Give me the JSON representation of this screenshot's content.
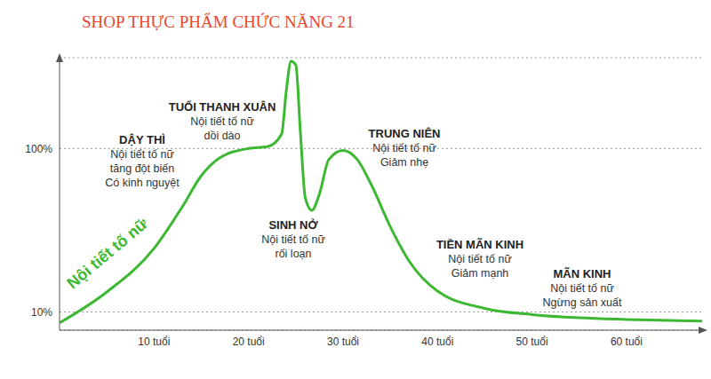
{
  "chart_data": {
    "type": "line",
    "title": "SHOP THỰC PHẨM CHỨC NĂNG 21",
    "x": [
      0,
      5,
      10,
      13,
      15,
      17,
      20,
      22,
      23.5,
      24,
      24.5,
      25,
      25.5,
      26,
      26.7,
      27.5,
      28.5,
      30,
      31.5,
      33,
      35,
      37,
      40,
      45,
      50,
      55,
      60,
      68
    ],
    "series": [
      {
        "name": "Nội tiết tố nữ",
        "color": "#3cb832",
        "values": [
          4,
          21,
          45,
          68,
          85,
          95,
          100,
          101,
          108,
          132,
          148,
          146,
          108,
          73,
          66,
          75,
          94,
          99,
          94,
          80,
          57,
          38,
          21.5,
          12,
          8.6,
          6.8,
          5.9,
          5
        ]
      }
    ],
    "xlim": [
      0,
      68
    ],
    "xticks": [
      {
        "value": 10,
        "label": "10 tuổi"
      },
      {
        "value": 20,
        "label": "20 tuổi"
      },
      {
        "value": 30,
        "label": "30 tuổi"
      },
      {
        "value": 40,
        "label": "40 tuổi"
      },
      {
        "value": 50,
        "label": "50 tuổi"
      },
      {
        "value": 60,
        "label": "60 tuổi"
      }
    ],
    "ylim": [
      0,
      150
    ],
    "yticks": [
      {
        "value": 10,
        "label": "10%"
      },
      {
        "value": 100,
        "label": "100%"
      }
    ],
    "grid": true,
    "annotations": [
      {
        "title": "DẬY THÌ",
        "text": [
          "Nội tiết tố nữ",
          "tăng đột biến",
          "Có kinh nguyệt"
        ]
      },
      {
        "title": "TUỔI THANH XUÂN",
        "text": [
          "Nội tiết tố nữ",
          "dồi dào"
        ]
      },
      {
        "title": "SINH NỞ",
        "text": [
          "Nội tiết tố nữ",
          "rối loạn"
        ]
      },
      {
        "title": "TRUNG NIÊN",
        "text": [
          "Nội tiết tố nữ",
          "Giảm nhẹ"
        ]
      },
      {
        "title": "TIỀN MÃN KINH",
        "text": [
          "Nội tiết tố nữ",
          "Giảm mạnh"
        ]
      },
      {
        "title": "MÃN KINH",
        "text": [
          "Nội tiết tố nữ",
          "Ngừng sản xuất"
        ]
      }
    ]
  }
}
